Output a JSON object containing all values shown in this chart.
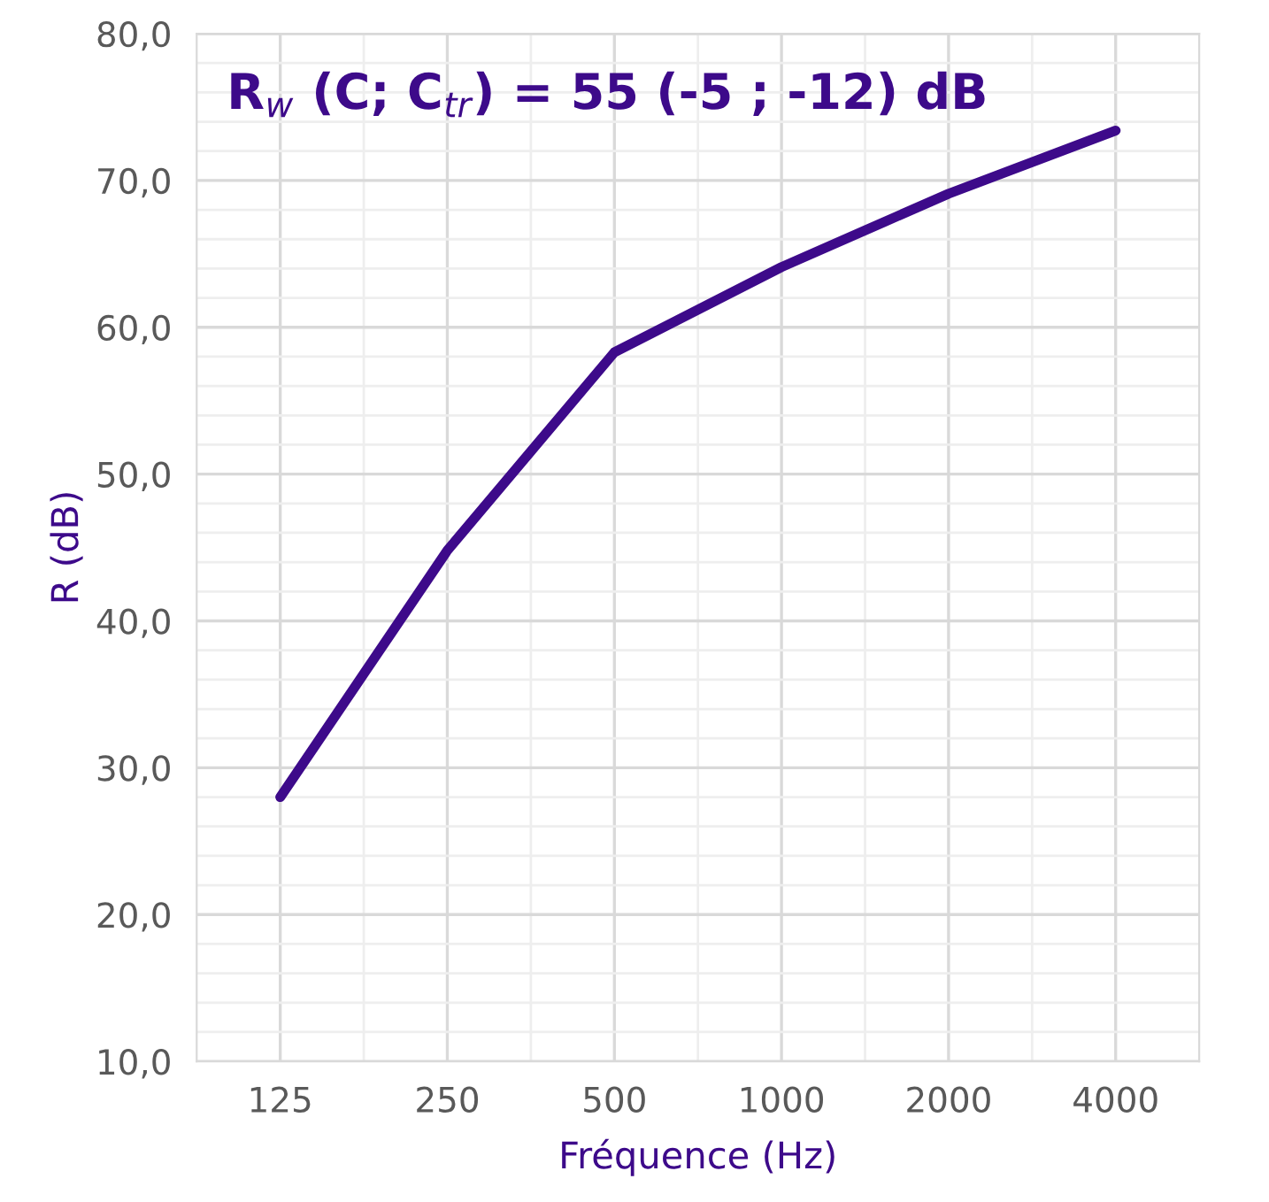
{
  "chart_data": {
    "type": "line",
    "title": "R$_{w}$ (C; C$_{tr}$) = 55 (-5 ; -12) dB",
    "xlabel": "Fréquence (Hz)",
    "ylabel": "R (dB)",
    "categories": [
      "125",
      "250",
      "500",
      "1000",
      "2000",
      "4000"
    ],
    "series": [
      {
        "color": "#3d0a8a",
        "values": [
          28.0,
          44.8,
          58.3,
          64.1,
          69.1,
          73.4
        ]
      }
    ],
    "ylim": [
      10,
      80
    ],
    "yticks": [
      {
        "value": 10,
        "label": "10,0"
      },
      {
        "value": 20,
        "label": "20,0"
      },
      {
        "value": 30,
        "label": "30,0"
      },
      {
        "value": 40,
        "label": "40,0"
      },
      {
        "value": 50,
        "label": "50,0"
      },
      {
        "value": 60,
        "label": "60,0"
      },
      {
        "value": 70,
        "label": "70,0"
      },
      {
        "value": 80,
        "label": "80,0"
      }
    ],
    "grid": true,
    "marker": "none",
    "line_style": "solid"
  }
}
